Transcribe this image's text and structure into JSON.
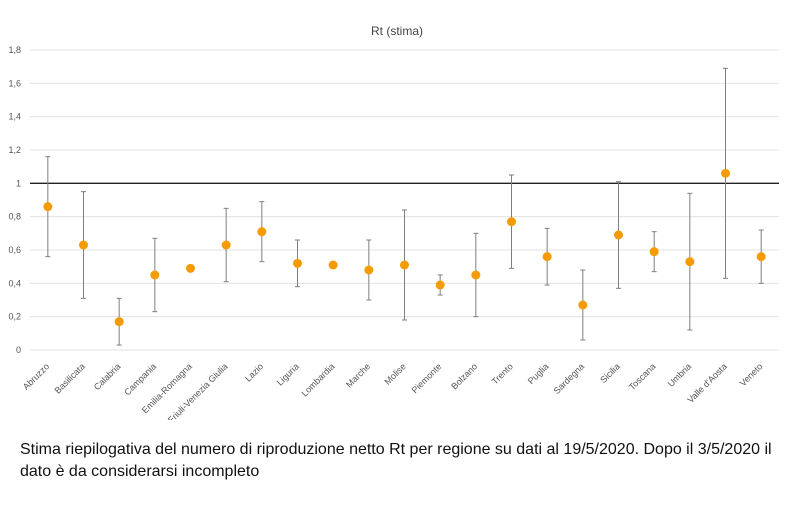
{
  "chart_data": {
    "type": "scatter",
    "title": "Rt (stima)",
    "xlabel": "",
    "ylabel": "",
    "ylim": [
      0,
      1.8
    ],
    "yticks": [
      "0",
      "0,2",
      "0,4",
      "0,6",
      "0,8",
      "1",
      "1,2",
      "1,4",
      "1,6",
      "1,8"
    ],
    "grid": true,
    "reference_line": 1,
    "categories": [
      "Abruzzo",
      "Basilicata",
      "Calabria",
      "Campania",
      "Emilia-Romagna",
      "Friuli-Venezia Giulia",
      "Lazio",
      "Liguria",
      "Lombardia",
      "Marche",
      "Molise",
      "Piemonte",
      "Bolzano",
      "Trento",
      "Puglia",
      "Sardegna",
      "Sicilia",
      "Toscana",
      "Umbria",
      "Valle d'Aosta",
      "Veneto"
    ],
    "values": [
      0.86,
      0.63,
      0.17,
      0.45,
      0.49,
      0.63,
      0.71,
      0.52,
      0.51,
      0.48,
      0.51,
      0.39,
      0.45,
      0.77,
      0.56,
      0.27,
      0.69,
      0.59,
      0.53,
      1.06,
      0.56
    ],
    "lower": [
      0.56,
      0.31,
      0.03,
      0.23,
      null,
      0.41,
      0.53,
      0.38,
      null,
      0.3,
      0.18,
      0.33,
      0.2,
      0.49,
      0.39,
      0.06,
      0.37,
      0.47,
      0.12,
      0.43,
      0.4
    ],
    "upper": [
      1.16,
      0.95,
      0.31,
      0.67,
      null,
      0.85,
      0.89,
      0.66,
      null,
      0.66,
      0.84,
      0.45,
      0.7,
      1.05,
      0.73,
      0.48,
      1.01,
      0.71,
      0.94,
      1.69,
      0.72
    ],
    "colors": {
      "point": "#f59b00",
      "errorbar": "#7f7f7f",
      "grid": "#e3e3e3",
      "reference": "#222222"
    }
  },
  "caption": "Stima riepilogativa del numero di riproduzione netto Rt per regione su dati al 19/5/2020. Dopo il 3/5/2020 il dato è da considerarsi incompleto"
}
